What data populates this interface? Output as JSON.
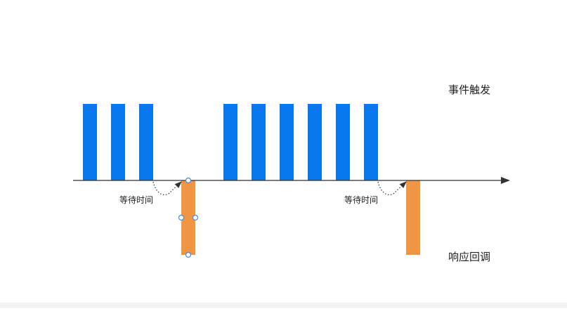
{
  "labels": {
    "event_trigger": "事件触发",
    "response_callback": "响应回调",
    "wait_time_1": "等待时间",
    "wait_time_2": "等待时间"
  },
  "colors": {
    "event_bar": "#0878ee",
    "response_bar": "#f09643",
    "axis": "#333333",
    "handle": "#3c8fe6"
  }
}
